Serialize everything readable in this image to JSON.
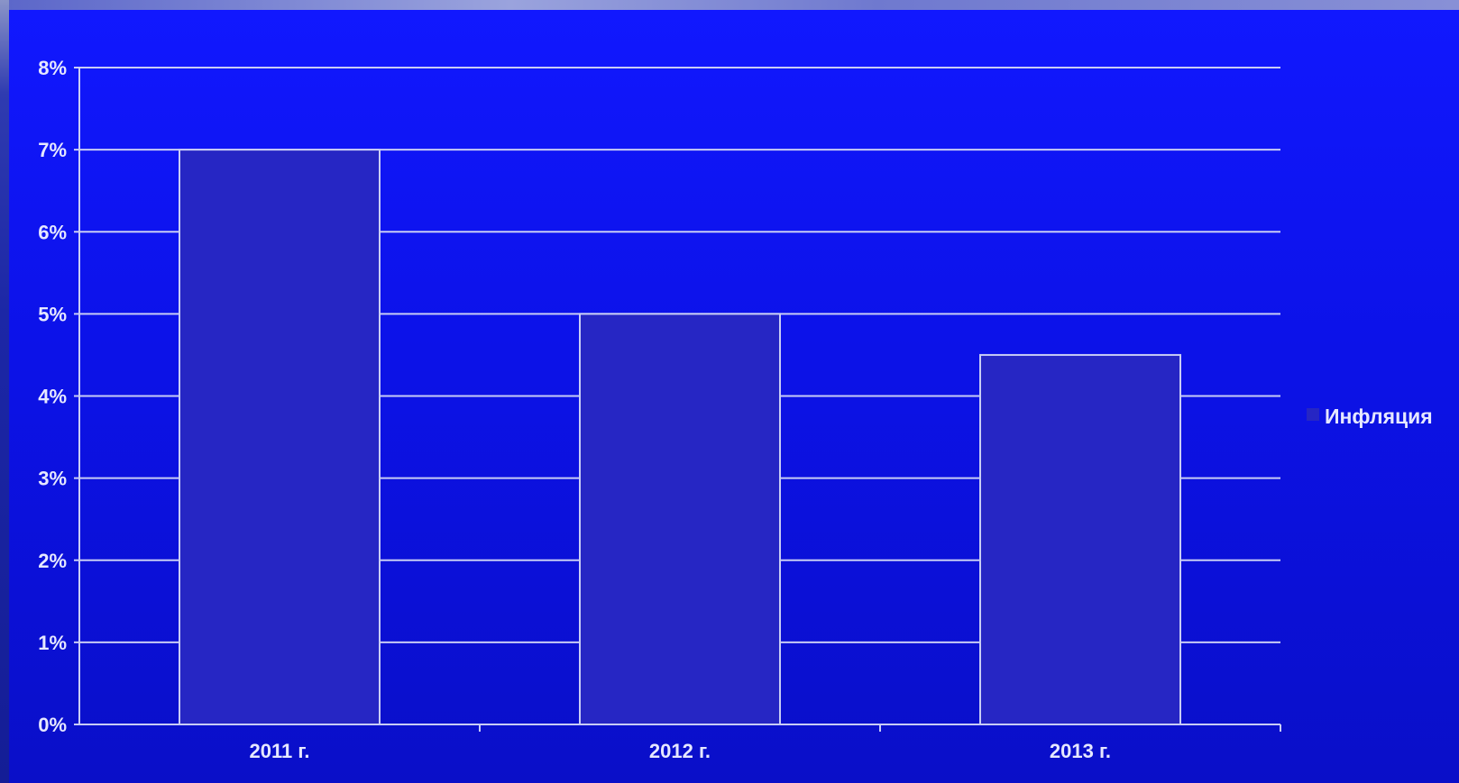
{
  "chart_data": {
    "type": "bar",
    "categories": [
      "2011 г.",
      "2012 г.",
      "2013 г."
    ],
    "series": [
      {
        "name": "Инфляция",
        "values": [
          7,
          5,
          4.5
        ]
      }
    ],
    "ylim": [
      0,
      8
    ],
    "y_ticks": [
      "0%",
      "1%",
      "2%",
      "3%",
      "4%",
      "5%",
      "6%",
      "7%",
      "8%"
    ],
    "grid": true,
    "legend_position": "right",
    "colors": {
      "bar_fill": "#2626c4",
      "bar_stroke": "#c8ccf5",
      "grid": "#c8ccf5",
      "text": "#e6e8ff",
      "legend_swatch": "#2626c4"
    }
  }
}
